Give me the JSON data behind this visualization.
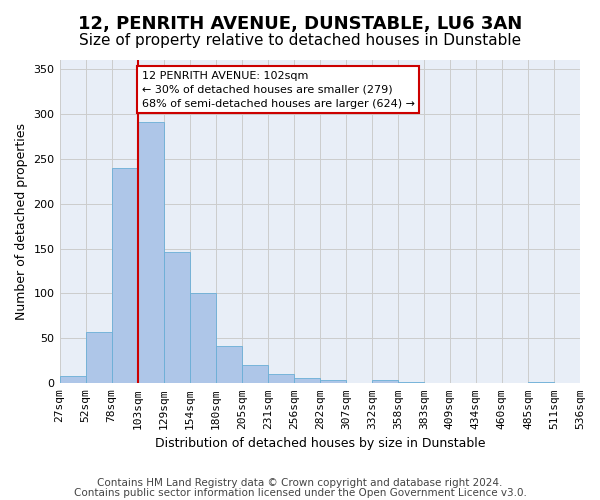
{
  "title": "12, PENRITH AVENUE, DUNSTABLE, LU6 3AN",
  "subtitle": "Size of property relative to detached houses in Dunstable",
  "xlabel": "Distribution of detached houses by size in Dunstable",
  "ylabel": "Number of detached properties",
  "bar_values": [
    8,
    57,
    240,
    291,
    146,
    100,
    41,
    20,
    10,
    6,
    4,
    0,
    4,
    2,
    0,
    0,
    0,
    0,
    2,
    0
  ],
  "bin_labels": [
    "27sqm",
    "52sqm",
    "78sqm",
    "103sqm",
    "129sqm",
    "154sqm",
    "180sqm",
    "205sqm",
    "231sqm",
    "256sqm",
    "282sqm",
    "307sqm",
    "332sqm",
    "358sqm",
    "383sqm",
    "409sqm",
    "434sqm",
    "460sqm",
    "485sqm",
    "511sqm",
    "536sqm"
  ],
  "bar_color": "#aec6e8",
  "bar_edge_color": "#6aaed6",
  "red_line_x": 2.5,
  "annotation_text": "12 PENRITH AVENUE: 102sqm\n← 30% of detached houses are smaller (279)\n68% of semi-detached houses are larger (624) →",
  "annotation_box_color": "#ffffff",
  "annotation_box_edge_color": "#cc0000",
  "red_line_color": "#cc0000",
  "ylim": [
    0,
    360
  ],
  "yticks": [
    0,
    50,
    100,
    150,
    200,
    250,
    300,
    350
  ],
  "grid_color": "#cccccc",
  "bg_color": "#e8eef7",
  "footer_line1": "Contains HM Land Registry data © Crown copyright and database right 2024.",
  "footer_line2": "Contains public sector information licensed under the Open Government Licence v3.0.",
  "title_fontsize": 13,
  "subtitle_fontsize": 11,
  "axis_label_fontsize": 9,
  "tick_fontsize": 8,
  "footer_fontsize": 7.5
}
